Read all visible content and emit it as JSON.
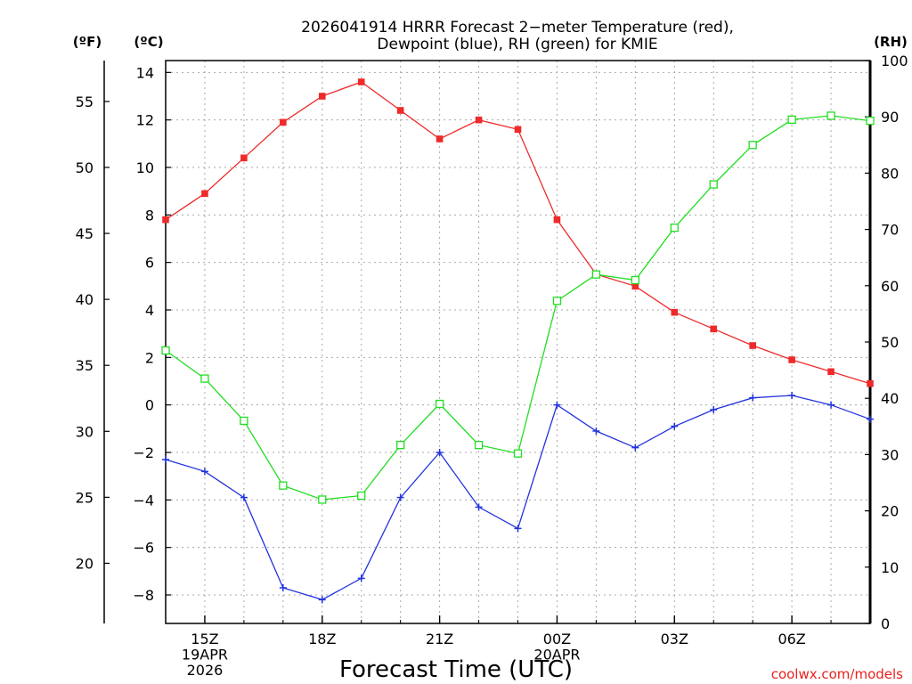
{
  "chart_data": {
    "type": "line",
    "title": "2026041914 HRRR Forecast 2−meter Temperature (red),",
    "title_line2": "Dewpoint (blue), RH (green) for KMIE",
    "xlabel": "Forecast Time (UTC)",
    "credit": "coolwx.com/models",
    "x_hours": [
      14,
      15,
      16,
      17,
      18,
      19,
      20,
      21,
      22,
      23,
      24,
      25,
      26,
      27,
      28,
      29,
      30,
      31,
      32
    ],
    "xlim": [
      14,
      32
    ],
    "x_ticks": [
      {
        "hour": 15,
        "lines": [
          "15Z",
          "19APR",
          "2026"
        ]
      },
      {
        "hour": 18,
        "lines": [
          "18Z"
        ]
      },
      {
        "hour": 21,
        "lines": [
          "21Z"
        ]
      },
      {
        "hour": 24,
        "lines": [
          "00Z",
          "20APR"
        ]
      },
      {
        "hour": 27,
        "lines": [
          "03Z"
        ]
      },
      {
        "hour": 30,
        "lines": [
          "06Z"
        ]
      }
    ],
    "y_left_c": {
      "unit": "(ºC)",
      "lim": [
        -9.2,
        14.5
      ],
      "ticks": [
        14,
        12,
        10,
        8,
        6,
        4,
        2,
        0,
        -2,
        -4,
        -6,
        -8
      ],
      "tick_labels": [
        "14",
        "12",
        "10",
        "8",
        "6",
        "4",
        "2",
        "0",
        "−2",
        "−4",
        "−6",
        "−8"
      ]
    },
    "y_left_f": {
      "unit": "(ºF)",
      "ticks": [
        55,
        50,
        45,
        40,
        35,
        30,
        25,
        20
      ]
    },
    "y_right_rh": {
      "unit": "(RH)",
      "lim": [
        0,
        100
      ],
      "ticks": [
        100,
        90,
        80,
        70,
        60,
        50,
        40,
        30,
        20,
        10,
        0
      ]
    },
    "series": [
      {
        "name": "Temperature",
        "color": "#ee2a2a",
        "axis": "c",
        "marker": "square-filled",
        "values": [
          7.8,
          8.9,
          10.4,
          11.9,
          13.0,
          13.6,
          12.4,
          11.2,
          12.0,
          11.6,
          7.8,
          5.5,
          5.0,
          3.9,
          3.2,
          2.5,
          1.9,
          1.4,
          0.9
        ]
      },
      {
        "name": "Dewpoint",
        "color": "#2233dd",
        "axis": "c",
        "marker": "plus",
        "values": [
          -2.3,
          -2.8,
          -3.9,
          -7.7,
          -8.2,
          -7.3,
          -3.9,
          -2.0,
          -4.3,
          -5.2,
          0.0,
          -1.1,
          -1.8,
          -0.9,
          -0.2,
          0.3,
          0.4,
          0.0,
          -0.6
        ]
      },
      {
        "name": "RH",
        "color": "#22dd22",
        "axis": "rh",
        "marker": "square-open",
        "values": [
          48.5,
          43.5,
          36.0,
          24.5,
          22.0,
          22.7,
          31.7,
          39.0,
          31.7,
          30.2,
          57.3,
          62.0,
          61.0,
          70.3,
          78.0,
          85.0,
          89.5,
          90.2,
          89.3
        ]
      }
    ]
  }
}
